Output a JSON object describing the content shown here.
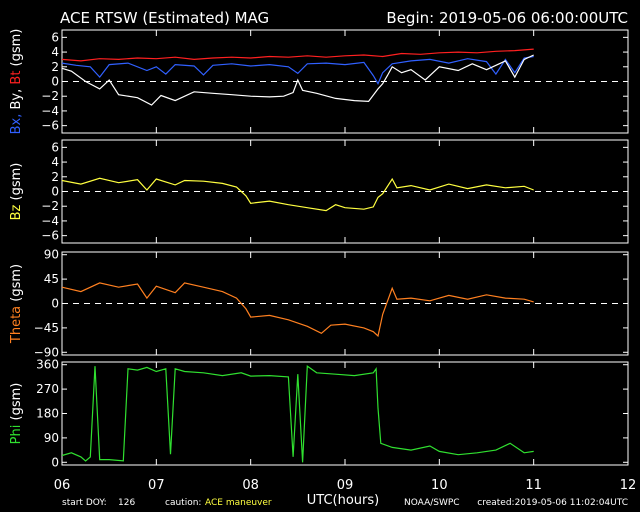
{
  "header": {
    "title": "ACE RTSW (Estimated) MAG",
    "begin": "Begin: 2019-05-06 06:00:00UTC"
  },
  "footer": {
    "start_doy_label": "start DOY:",
    "start_doy_value": "126",
    "caution_label": "caution:",
    "caution_value": "ACE maneuver",
    "xlabel": "UTC(hours)",
    "source": "NOAA/SWPC",
    "created": "created:2019-05-06 11:02:04UTC"
  },
  "colors": {
    "bx": "#3060ff",
    "by": "#ffffff",
    "bt": "#ff2020",
    "bz": "#ffff40",
    "theta": "#ff8020",
    "phi": "#30e030",
    "caution": "#ffff40"
  },
  "chart_data": {
    "type": "line",
    "x_ticks": [
      "06",
      "07",
      "08",
      "09",
      "10",
      "11",
      "12"
    ],
    "xlim": [
      6,
      12
    ],
    "panels": [
      {
        "id": "bxbybt",
        "ylabel_parts": [
          {
            "text": "Bx,",
            "color": "#3060ff"
          },
          {
            "text": " By,",
            "color": "#ffffff"
          },
          {
            "text": " Bt",
            "color": "#ff2020"
          },
          {
            "text": " (gsm)",
            "color": "#ffffff"
          }
        ],
        "ylim": [
          -7,
          7
        ],
        "yticks": [
          6,
          4,
          2,
          0,
          -2,
          -4,
          -6
        ],
        "ytick_labels": [
          "6",
          "4",
          "2",
          "0",
          "−2",
          "−4",
          "−6"
        ],
        "zero_line": true,
        "series": [
          {
            "key": "bt",
            "color": "#ff2020",
            "points": [
              [
                6.0,
                3.0
              ],
              [
                6.2,
                2.8
              ],
              [
                6.4,
                3.1
              ],
              [
                6.6,
                3.0
              ],
              [
                6.8,
                3.2
              ],
              [
                7.0,
                3.1
              ],
              [
                7.2,
                3.3
              ],
              [
                7.4,
                3.0
              ],
              [
                7.6,
                3.2
              ],
              [
                7.8,
                3.3
              ],
              [
                8.0,
                3.2
              ],
              [
                8.2,
                3.4
              ],
              [
                8.4,
                3.3
              ],
              [
                8.6,
                3.5
              ],
              [
                8.8,
                3.3
              ],
              [
                9.0,
                3.5
              ],
              [
                9.2,
                3.6
              ],
              [
                9.4,
                3.4
              ],
              [
                9.6,
                3.8
              ],
              [
                9.8,
                3.7
              ],
              [
                10.0,
                3.9
              ],
              [
                10.2,
                4.0
              ],
              [
                10.4,
                3.9
              ],
              [
                10.6,
                4.1
              ],
              [
                10.8,
                4.2
              ],
              [
                11.0,
                4.4
              ]
            ]
          },
          {
            "key": "bx",
            "color": "#3060ff",
            "points": [
              [
                6.0,
                2.5
              ],
              [
                6.15,
                2.2
              ],
              [
                6.3,
                2.0
              ],
              [
                6.4,
                0.6
              ],
              [
                6.5,
                2.3
              ],
              [
                6.7,
                2.5
              ],
              [
                6.9,
                1.5
              ],
              [
                7.0,
                2.0
              ],
              [
                7.1,
                1.0
              ],
              [
                7.2,
                2.3
              ],
              [
                7.4,
                2.1
              ],
              [
                7.5,
                0.9
              ],
              [
                7.6,
                2.2
              ],
              [
                7.8,
                2.4
              ],
              [
                8.0,
                2.1
              ],
              [
                8.2,
                2.3
              ],
              [
                8.4,
                2.0
              ],
              [
                8.5,
                1.1
              ],
              [
                8.6,
                2.4
              ],
              [
                8.8,
                2.5
              ],
              [
                9.0,
                2.3
              ],
              [
                9.2,
                2.6
              ],
              [
                9.3,
                0.8
              ],
              [
                9.35,
                -0.3
              ],
              [
                9.4,
                1.2
              ],
              [
                9.5,
                2.4
              ],
              [
                9.7,
                2.8
              ],
              [
                9.9,
                3.0
              ],
              [
                10.1,
                2.5
              ],
              [
                10.3,
                3.1
              ],
              [
                10.5,
                2.7
              ],
              [
                10.6,
                1.0
              ],
              [
                10.7,
                3.0
              ],
              [
                10.8,
                1.2
              ],
              [
                10.9,
                3.2
              ],
              [
                11.0,
                3.4
              ]
            ]
          },
          {
            "key": "by",
            "color": "#ffffff",
            "points": [
              [
                6.0,
                1.8
              ],
              [
                6.1,
                1.4
              ],
              [
                6.25,
                0.0
              ],
              [
                6.4,
                -1.0
              ],
              [
                6.5,
                0.2
              ],
              [
                6.6,
                -1.8
              ],
              [
                6.8,
                -2.2
              ],
              [
                6.95,
                -3.2
              ],
              [
                7.05,
                -1.9
              ],
              [
                7.2,
                -2.6
              ],
              [
                7.4,
                -1.4
              ],
              [
                7.6,
                -1.6
              ],
              [
                7.8,
                -1.8
              ],
              [
                8.0,
                -2.0
              ],
              [
                8.2,
                -2.1
              ],
              [
                8.35,
                -2.0
              ],
              [
                8.45,
                -1.5
              ],
              [
                8.5,
                0.2
              ],
              [
                8.55,
                -1.2
              ],
              [
                8.7,
                -1.6
              ],
              [
                8.9,
                -2.3
              ],
              [
                9.1,
                -2.6
              ],
              [
                9.25,
                -2.7
              ],
              [
                9.35,
                -1.0
              ],
              [
                9.4,
                -0.3
              ],
              [
                9.45,
                0.8
              ],
              [
                9.5,
                2.0
              ],
              [
                9.6,
                1.2
              ],
              [
                9.7,
                1.6
              ],
              [
                9.85,
                0.2
              ],
              [
                10.0,
                2.0
              ],
              [
                10.2,
                1.5
              ],
              [
                10.35,
                2.4
              ],
              [
                10.5,
                1.6
              ],
              [
                10.7,
                2.8
              ],
              [
                10.8,
                0.6
              ],
              [
                10.9,
                3.0
              ],
              [
                11.0,
                3.6
              ]
            ]
          }
        ]
      },
      {
        "id": "bz",
        "ylabel_parts": [
          {
            "text": "Bz",
            "color": "#ffff40"
          },
          {
            "text": " (gsm)",
            "color": "#ffffff"
          }
        ],
        "ylim": [
          -7,
          7
        ],
        "yticks": [
          6,
          4,
          2,
          0,
          -2,
          -4,
          -6
        ],
        "ytick_labels": [
          "6",
          "4",
          "2",
          "0",
          "−2",
          "−4",
          "−6"
        ],
        "zero_line": true,
        "series": [
          {
            "key": "bz",
            "color": "#ffff40",
            "points": [
              [
                6.0,
                1.5
              ],
              [
                6.2,
                1.0
              ],
              [
                6.4,
                1.8
              ],
              [
                6.6,
                1.2
              ],
              [
                6.8,
                1.6
              ],
              [
                6.9,
                0.2
              ],
              [
                7.0,
                1.7
              ],
              [
                7.2,
                0.9
              ],
              [
                7.3,
                1.5
              ],
              [
                7.5,
                1.4
              ],
              [
                7.7,
                1.1
              ],
              [
                7.85,
                0.6
              ],
              [
                7.95,
                -0.6
              ],
              [
                8.0,
                -1.6
              ],
              [
                8.2,
                -1.3
              ],
              [
                8.4,
                -1.8
              ],
              [
                8.6,
                -2.2
              ],
              [
                8.8,
                -2.6
              ],
              [
                8.9,
                -1.8
              ],
              [
                9.0,
                -2.2
              ],
              [
                9.2,
                -2.4
              ],
              [
                9.3,
                -2.1
              ],
              [
                9.35,
                -0.8
              ],
              [
                9.4,
                -0.3
              ],
              [
                9.5,
                1.7
              ],
              [
                9.55,
                0.5
              ],
              [
                9.7,
                0.8
              ],
              [
                9.9,
                0.2
              ],
              [
                10.1,
                1.0
              ],
              [
                10.3,
                0.4
              ],
              [
                10.5,
                0.9
              ],
              [
                10.7,
                0.5
              ],
              [
                10.9,
                0.7
              ],
              [
                11.0,
                0.2
              ]
            ]
          }
        ]
      },
      {
        "id": "theta",
        "ylabel_parts": [
          {
            "text": "Theta",
            "color": "#ff8020"
          },
          {
            "text": " (gsm)",
            "color": "#ffffff"
          }
        ],
        "ylim": [
          -95,
          95
        ],
        "yticks": [
          90,
          45,
          0,
          -45,
          -90
        ],
        "ytick_labels": [
          "90",
          "45",
          "0",
          "−45",
          "−90"
        ],
        "zero_line": true,
        "series": [
          {
            "key": "theta",
            "color": "#ff8020",
            "points": [
              [
                6.0,
                30
              ],
              [
                6.2,
                22
              ],
              [
                6.4,
                38
              ],
              [
                6.6,
                30
              ],
              [
                6.8,
                36
              ],
              [
                6.9,
                10
              ],
              [
                7.0,
                32
              ],
              [
                7.2,
                20
              ],
              [
                7.3,
                38
              ],
              [
                7.5,
                30
              ],
              [
                7.7,
                22
              ],
              [
                7.85,
                10
              ],
              [
                7.95,
                -10
              ],
              [
                8.0,
                -25
              ],
              [
                8.2,
                -22
              ],
              [
                8.4,
                -30
              ],
              [
                8.6,
                -42
              ],
              [
                8.75,
                -55
              ],
              [
                8.85,
                -40
              ],
              [
                9.0,
                -38
              ],
              [
                9.2,
                -45
              ],
              [
                9.3,
                -52
              ],
              [
                9.35,
                -60
              ],
              [
                9.4,
                -20
              ],
              [
                9.5,
                28
              ],
              [
                9.55,
                8
              ],
              [
                9.7,
                10
              ],
              [
                9.9,
                5
              ],
              [
                10.1,
                15
              ],
              [
                10.3,
                8
              ],
              [
                10.5,
                16
              ],
              [
                10.7,
                10
              ],
              [
                10.9,
                8
              ],
              [
                11.0,
                3
              ]
            ]
          }
        ]
      },
      {
        "id": "phi",
        "ylabel_parts": [
          {
            "text": "Phi",
            "color": "#30e030"
          },
          {
            "text": " (gsm)",
            "color": "#ffffff"
          }
        ],
        "ylim": [
          -10,
          370
        ],
        "yticks": [
          360,
          270,
          180,
          90,
          0
        ],
        "ytick_labels": [
          "360",
          "270",
          "180",
          "90",
          "0"
        ],
        "zero_line": false,
        "series": [
          {
            "key": "phi",
            "color": "#30e030",
            "points": [
              [
                6.0,
                25
              ],
              [
                6.1,
                35
              ],
              [
                6.2,
                20
              ],
              [
                6.25,
                5
              ],
              [
                6.3,
                20
              ],
              [
                6.35,
                355
              ],
              [
                6.4,
                10
              ],
              [
                6.5,
                10
              ],
              [
                6.65,
                5
              ],
              [
                6.7,
                345
              ],
              [
                6.8,
                340
              ],
              [
                6.9,
                350
              ],
              [
                7.0,
                335
              ],
              [
                7.1,
                345
              ],
              [
                7.15,
                30
              ],
              [
                7.2,
                345
              ],
              [
                7.3,
                335
              ],
              [
                7.5,
                330
              ],
              [
                7.7,
                320
              ],
              [
                7.9,
                330
              ],
              [
                8.0,
                318
              ],
              [
                8.2,
                320
              ],
              [
                8.4,
                315
              ],
              [
                8.45,
                20
              ],
              [
                8.5,
                325
              ],
              [
                8.55,
                0
              ],
              [
                8.6,
                355
              ],
              [
                8.7,
                330
              ],
              [
                8.9,
                325
              ],
              [
                9.1,
                320
              ],
              [
                9.3,
                330
              ],
              [
                9.33,
                345
              ],
              [
                9.35,
                200
              ],
              [
                9.38,
                70
              ],
              [
                9.5,
                55
              ],
              [
                9.7,
                45
              ],
              [
                9.9,
                60
              ],
              [
                10.0,
                40
              ],
              [
                10.2,
                28
              ],
              [
                10.4,
                35
              ],
              [
                10.6,
                45
              ],
              [
                10.75,
                70
              ],
              [
                10.9,
                35
              ],
              [
                11.0,
                40
              ]
            ]
          }
        ]
      }
    ]
  }
}
